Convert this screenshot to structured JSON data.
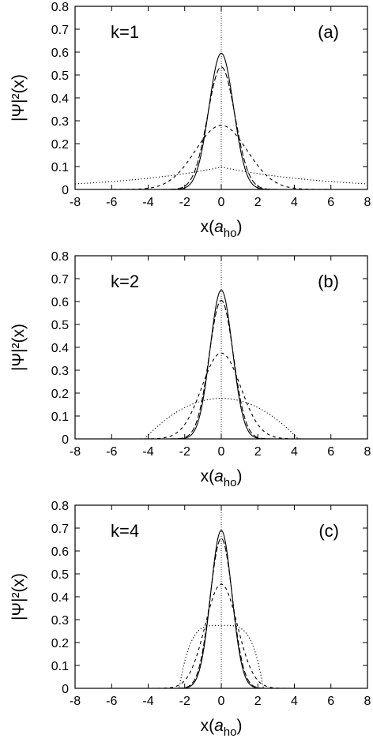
{
  "chart_data": [
    {
      "type": "line",
      "panel_label": "(a)",
      "annotation": "k=1",
      "ylabel": "|Ψ|²(x)",
      "xlabel": "x(a_ho)",
      "xlim": [
        -8,
        8
      ],
      "ylim": [
        0,
        0.8
      ],
      "xticks": [
        "-8",
        "-6",
        "-4",
        "-2",
        "0",
        "2",
        "4",
        "6",
        "8"
      ],
      "yticks": [
        "0",
        "0.1",
        "0.2",
        "0.3",
        "0.4",
        "0.5",
        "0.6",
        "0.7",
        "0.8"
      ],
      "vertical_line_x": 0,
      "series": [
        {
          "style": "solid",
          "shape": "gaussian",
          "peak": 0.595,
          "sigma": 0.67
        },
        {
          "style": "long-dash",
          "shape": "gaussian",
          "peak": 0.535,
          "sigma": 0.745
        },
        {
          "style": "dashed",
          "shape": "gaussian",
          "peak": 0.28,
          "sigma": 1.42
        },
        {
          "style": "dotted",
          "shape": "exponential",
          "peak": 0.098,
          "decay": 0.174
        }
      ]
    },
    {
      "type": "line",
      "panel_label": "(b)",
      "annotation": "k=2",
      "ylabel": "|Ψ|²(x)",
      "xlabel": "x(a_ho)",
      "xlim": [
        -8,
        8
      ],
      "ylim": [
        0,
        0.8
      ],
      "xticks": [
        "-8",
        "-6",
        "-4",
        "-2",
        "0",
        "2",
        "4",
        "6",
        "8"
      ],
      "yticks": [
        "0",
        "0.1",
        "0.2",
        "0.3",
        "0.4",
        "0.5",
        "0.6",
        "0.7",
        "0.8"
      ],
      "vertical_line_x": 0,
      "series": [
        {
          "style": "solid",
          "shape": "gaussian",
          "peak": 0.65,
          "sigma": 0.61
        },
        {
          "style": "long-dash",
          "shape": "gaussian",
          "peak": 0.605,
          "sigma": 0.66
        },
        {
          "style": "dashed",
          "shape": "gaussian",
          "peak": 0.375,
          "sigma": 1.06
        },
        {
          "style": "dotted",
          "shape": "parabolic",
          "peak": 0.177,
          "radius": 4.2
        }
      ]
    },
    {
      "type": "line",
      "panel_label": "(c)",
      "annotation": "k=4",
      "ylabel": "|Ψ|²(x)",
      "xlabel": "x(a_ho)",
      "xlim": [
        -8,
        8
      ],
      "ylim": [
        0,
        0.8
      ],
      "xticks": [
        "-8",
        "-6",
        "-4",
        "-2",
        "0",
        "2",
        "4",
        "6",
        "8"
      ],
      "yticks": [
        "0",
        "0.1",
        "0.2",
        "0.3",
        "0.4",
        "0.5",
        "0.6",
        "0.7",
        "0.8"
      ],
      "vertical_line_x": 0,
      "series": [
        {
          "style": "solid",
          "shape": "gaussian",
          "peak": 0.69,
          "sigma": 0.575
        },
        {
          "style": "long-dash",
          "shape": "gaussian",
          "peak": 0.655,
          "sigma": 0.61
        },
        {
          "style": "dashed",
          "shape": "gaussian",
          "peak": 0.455,
          "sigma": 0.88
        },
        {
          "style": "dotted",
          "shape": "flat-top",
          "peak": 0.275,
          "radius": 2.3,
          "power": 4
        }
      ]
    }
  ]
}
